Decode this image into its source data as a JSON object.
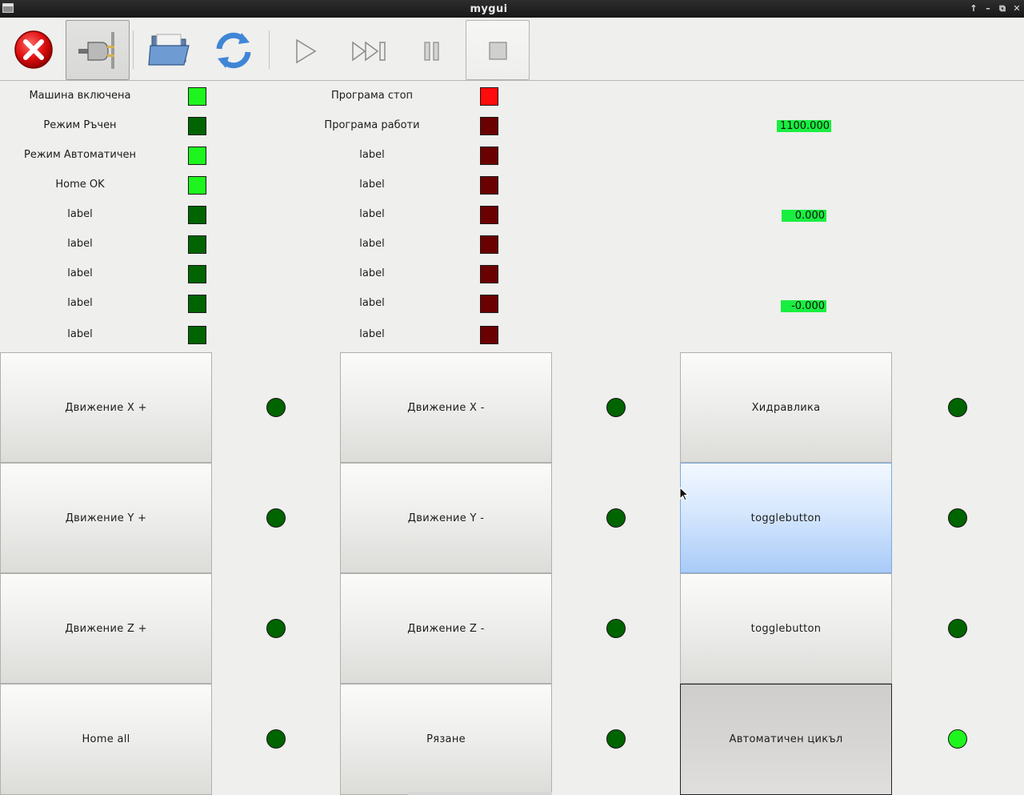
{
  "window": {
    "title": "mygui",
    "controls": {
      "up": "↑",
      "minimize": "–",
      "restore": "⧉",
      "close": "✕"
    }
  },
  "toolbar": {
    "buttons": [
      {
        "name": "stop-icon",
        "state": "normal"
      },
      {
        "name": "power-plug-icon",
        "state": "pressed"
      },
      {
        "name": "open-folder-icon",
        "state": "normal"
      },
      {
        "name": "refresh-icon",
        "state": "normal"
      },
      {
        "name": "play-icon",
        "state": "normal"
      },
      {
        "name": "skip-forward-icon",
        "state": "normal"
      },
      {
        "name": "pause-icon",
        "state": "normal"
      },
      {
        "name": "stop-square-icon",
        "state": "pressed"
      }
    ]
  },
  "colors": {
    "led_on": "#1ef51e",
    "led_green_off": "#006400",
    "led_red_on": "#ff0c0c",
    "led_red_off": "#6b0000",
    "readout_bg": "#18ee40",
    "hover_blue": "#a9cbf8"
  },
  "status_left": [
    {
      "label": "Машина включена",
      "led": "on"
    },
    {
      "label": "Режим Ръчен",
      "led": "off"
    },
    {
      "label": "Режим Автоматичен",
      "led": "on"
    },
    {
      "label": "Home OK",
      "led": "on"
    },
    {
      "label": "label",
      "led": "off"
    },
    {
      "label": "label",
      "led": "off"
    },
    {
      "label": "label",
      "led": "off"
    },
    {
      "label": "label",
      "led": "off"
    },
    {
      "label": "label",
      "led": "off"
    }
  ],
  "status_middle": [
    {
      "label": "Програма стоп",
      "led": "on"
    },
    {
      "label": "Програма работи",
      "led": "off"
    },
    {
      "label": "label",
      "led": "off"
    },
    {
      "label": "label",
      "led": "off"
    },
    {
      "label": "label",
      "led": "off"
    },
    {
      "label": "label",
      "led": "off"
    },
    {
      "label": "label",
      "led": "off"
    },
    {
      "label": "label",
      "led": "off"
    },
    {
      "label": "label",
      "led": "off"
    }
  ],
  "readouts": [
    "1100.000",
    "0.000",
    "-0.000"
  ],
  "buttons": {
    "col1": [
      {
        "label": "Движение X +",
        "led": "off"
      },
      {
        "label": "Движение Y +",
        "led": "off"
      },
      {
        "label": "Движение Z +",
        "led": "off"
      },
      {
        "label": "Home all",
        "led": "off"
      }
    ],
    "col2": [
      {
        "label": "Движение X -",
        "led": "off"
      },
      {
        "label": "Движение Y -",
        "led": "off"
      },
      {
        "label": "Движение Z -",
        "led": "off"
      },
      {
        "label": "Рязане",
        "led": "off"
      }
    ],
    "col3": [
      {
        "label": "Хидравлика",
        "led": "off",
        "state": "normal"
      },
      {
        "label": "togglebutton",
        "led": "off",
        "state": "hover"
      },
      {
        "label": "togglebutton",
        "led": "off",
        "state": "normal"
      },
      {
        "label": "Автоматичен цикъл",
        "led": "on",
        "state": "active"
      }
    ]
  }
}
